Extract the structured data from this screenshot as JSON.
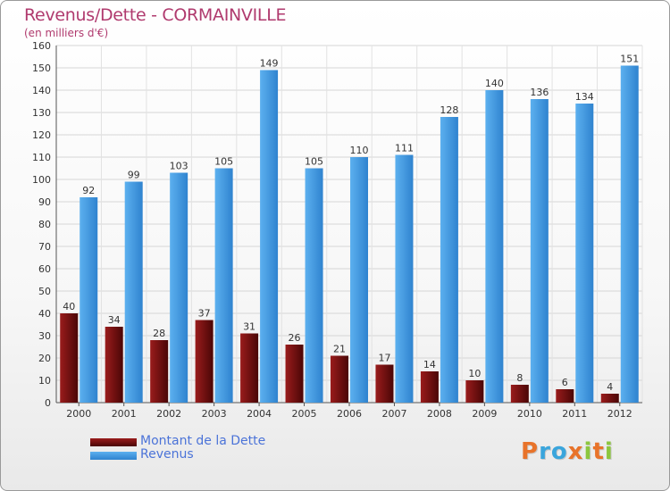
{
  "header": {
    "title": "Revenus/Dette - CORMAINVILLE",
    "subtitle": "(en milliers d'€)"
  },
  "chart_data": {
    "type": "bar",
    "title": "Revenus/Dette - CORMAINVILLE",
    "subtitle": "(en milliers d'€)",
    "categories": [
      "2000",
      "2001",
      "2002",
      "2003",
      "2004",
      "2005",
      "2006",
      "2007",
      "2008",
      "2009",
      "2010",
      "2011",
      "2012"
    ],
    "series": [
      {
        "name": "Montant de la Dette",
        "color": "#7a0f0f",
        "values": [
          40,
          34,
          28,
          37,
          31,
          26,
          21,
          17,
          14,
          10,
          8,
          6,
          4
        ]
      },
      {
        "name": "Revenus",
        "color": "#3f95de",
        "values": [
          92,
          99,
          103,
          105,
          149,
          105,
          110,
          111,
          128,
          140,
          136,
          134,
          151
        ]
      }
    ],
    "yticks": [
      "0",
      "10",
      "20",
      "30",
      "40",
      "50",
      "60",
      "70",
      "80",
      "90",
      "100",
      "110",
      "120",
      "130",
      "140",
      "150",
      "160"
    ],
    "ylim": [
      0,
      160
    ],
    "grid": true,
    "legend": "bottom-left"
  },
  "logo": {
    "letters": [
      "P",
      "r",
      "o",
      "x",
      "i",
      "t",
      "i"
    ],
    "colors": [
      "#e8732a",
      "#3aa5dc",
      "#3aa5dc",
      "#e8732a",
      "#8cc63e",
      "#e8732a",
      "#8cc63e"
    ]
  }
}
